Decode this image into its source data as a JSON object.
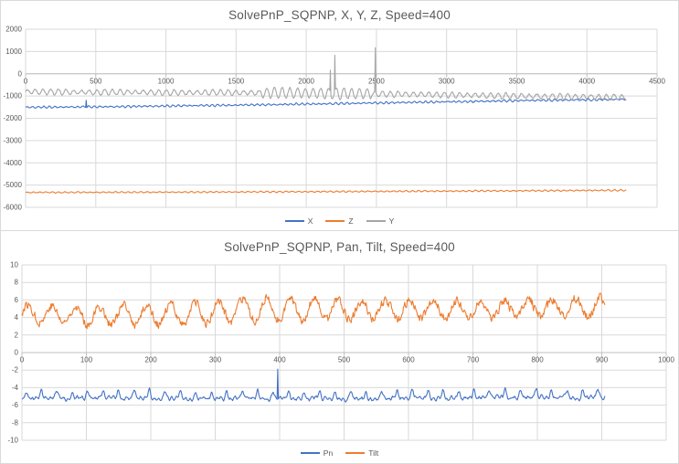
{
  "app": {
    "background": "#ffffff",
    "chart_border_color": "#d9d9d9",
    "gridline_color": "#d9d9d9",
    "axis_line_color": "#bfbfbf",
    "title_color": "#595959",
    "tick_label_color": "#595959"
  },
  "chart_data": [
    {
      "type": "line",
      "title": "SolvePnP_SQPNP, X, Y, Z, Speed=400",
      "xlabel": "",
      "ylabel": "",
      "x_axis": {
        "min": 0,
        "max": 4500,
        "tick_step": 500,
        "ticks": [
          0,
          500,
          1000,
          1500,
          2000,
          2500,
          3000,
          3500,
          4000,
          4500
        ]
      },
      "y_axis": {
        "min": -6000,
        "max": 2000,
        "tick_step": 1000,
        "ticks": [
          2000,
          1000,
          0,
          -1000,
          -2000,
          -3000,
          -4000,
          -5000,
          -6000
        ]
      },
      "grid": true,
      "legend_position": "bottom",
      "data_x_end": 4280,
      "series": [
        {
          "name": "X",
          "color": "#4472C4",
          "summary": "starts near -1500, oscillating band rising slowly to about -1150 at x=4280; small upward spike near x=430",
          "gen": {
            "start": 0,
            "end": 4280,
            "step": 4,
            "seed": 11,
            "trend": [
              [
                0,
                -1505
              ],
              [
                600,
                -1480
              ],
              [
                1200,
                -1430
              ],
              [
                1800,
                -1380
              ],
              [
                2400,
                -1320
              ],
              [
                3000,
                -1260
              ],
              [
                3600,
                -1200
              ],
              [
                4280,
                -1150
              ]
            ],
            "wave": {
              "period": 40,
              "amp": 45
            },
            "envelope": {
              "period": 300,
              "depth": 0.55
            },
            "noise": 18,
            "smooth": 0.3,
            "spikes": [
              [
                430,
                -1190
              ]
            ]
          }
        },
        {
          "name": "Z",
          "color": "#ED7D31",
          "summary": "nearly flat band around -5330 rising slightly to about -5235",
          "gen": {
            "start": 0,
            "end": 4280,
            "step": 4,
            "seed": 23,
            "trend": [
              [
                0,
                -5330
              ],
              [
                1500,
                -5310
              ],
              [
                3000,
                -5270
              ],
              [
                4280,
                -5235
              ]
            ],
            "wave": {
              "period": 45,
              "amp": 30
            },
            "envelope": {
              "period": 500,
              "depth": 0.4
            },
            "noise": 12,
            "smooth": 0.3
          }
        },
        {
          "name": "Y",
          "color": "#A5A5A5",
          "summary": "oscillating band around -800 drifting to about -1060; larger oscillation burst between x=1700 and x=2460; tall spikes near x=2205 (to ~+830) and x=2490 (to ~+1170)",
          "gen": {
            "start": 0,
            "end": 4280,
            "step": 4,
            "seed": 37,
            "trend": [
              [
                0,
                -810
              ],
              [
                600,
                -830
              ],
              [
                1200,
                -845
              ],
              [
                1800,
                -860
              ],
              [
                2400,
                -900
              ],
              [
                3000,
                -950
              ],
              [
                3600,
                -1010
              ],
              [
                4280,
                -1060
              ]
            ],
            "wave": {
              "period": 55,
              "amp": 130
            },
            "envelope": {
              "period": 400,
              "depth": 0.3
            },
            "burst": {
              "from": 1680,
              "to": 2460,
              "extra": 120
            },
            "noise": 30,
            "smooth": 0.3,
            "spikes": [
              [
                2170,
                160
              ],
              [
                2205,
                830
              ],
              [
                2490,
                1170
              ]
            ]
          }
        }
      ]
    },
    {
      "type": "line",
      "title": "SolvePnP_SQPNP, Pan, Tilt, Speed=400",
      "xlabel": "",
      "ylabel": "",
      "x_axis": {
        "min": 0,
        "max": 1000,
        "tick_step": 100,
        "ticks": [
          0,
          100,
          200,
          300,
          400,
          500,
          600,
          700,
          800,
          900,
          1000
        ]
      },
      "y_axis": {
        "min": -10,
        "max": 10,
        "tick_step": 2,
        "ticks": [
          10,
          8,
          6,
          4,
          2,
          0,
          -2,
          -4,
          -6,
          -8,
          -10
        ]
      },
      "grid": true,
      "legend_position": "bottom",
      "data_x_end": 905,
      "series": [
        {
          "name": "Pn",
          "color": "#4472C4",
          "summary": "wanders around -5.2 with narrow upward bumps toward -4; sharp spike to about -1.9 near x=397",
          "gen": {
            "start": 0,
            "end": 905,
            "step": 1,
            "seed": 51,
            "trend": [
              [
                0,
                -5.2
              ],
              [
                200,
                -5.15
              ],
              [
                400,
                -5.3
              ],
              [
                600,
                -5.2
              ],
              [
                905,
                -5.1
              ]
            ],
            "wave": {
              "period": 7,
              "amp": 0.12
            },
            "humps": {
              "period": 24,
              "amp": 0.85,
              "pow": 4
            },
            "noise": 0.22,
            "smooth": 0.75,
            "spikes": [
              [
                397,
                -1.9
              ]
            ]
          }
        },
        {
          "name": "Tilt",
          "color": "#ED7D31",
          "summary": "jagged quasi-periodic wave between about 2.6 and 7, mean near 4.5-5, slightly higher toward the end",
          "gen": {
            "start": 0,
            "end": 905,
            "step": 1,
            "seed": 77,
            "trend": [
              [
                0,
                4.5
              ],
              [
                120,
                4.2
              ],
              [
                260,
                4.4
              ],
              [
                360,
                4.9
              ],
              [
                700,
                4.9
              ],
              [
                905,
                5.2
              ]
            ],
            "wave": {
              "period": 37,
              "amp": 1.25
            },
            "envelope": {
              "period": 700,
              "depth": 0.25
            },
            "noise": 0.55,
            "smooth": 0.35
          }
        }
      ]
    }
  ]
}
